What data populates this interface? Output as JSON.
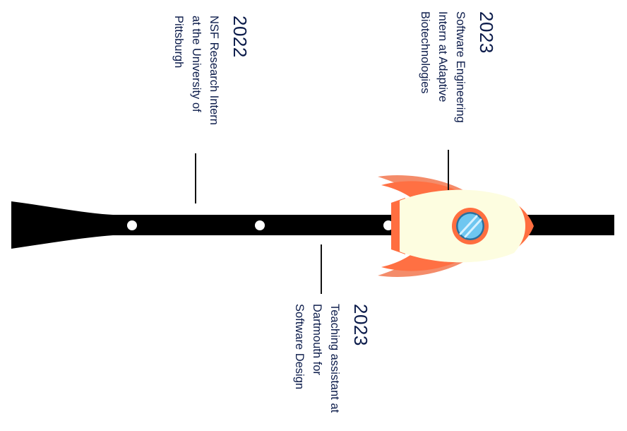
{
  "milestones": [
    {
      "year": "2022",
      "description": "NSF Research Intern\nat the University of\nPittsburgh"
    },
    {
      "year": "2023",
      "description": "Software Engineering\nIntern at Adaptive\nBiotechnologies"
    },
    {
      "year": "2023",
      "description": "Teaching assistant at\nDartmouth for\nSoftware Design"
    }
  ],
  "colors": {
    "track": "#000000",
    "rocket_body": "#fdfde0",
    "rocket_fin": "#ff7043",
    "rocket_fin_back": "#f48c6a",
    "window_ring": "#ff6e40",
    "window_glass": "#6ec6f0",
    "text": "#0b1b4a"
  },
  "icons": [
    "rocket-icon",
    "timeline-dot"
  ]
}
